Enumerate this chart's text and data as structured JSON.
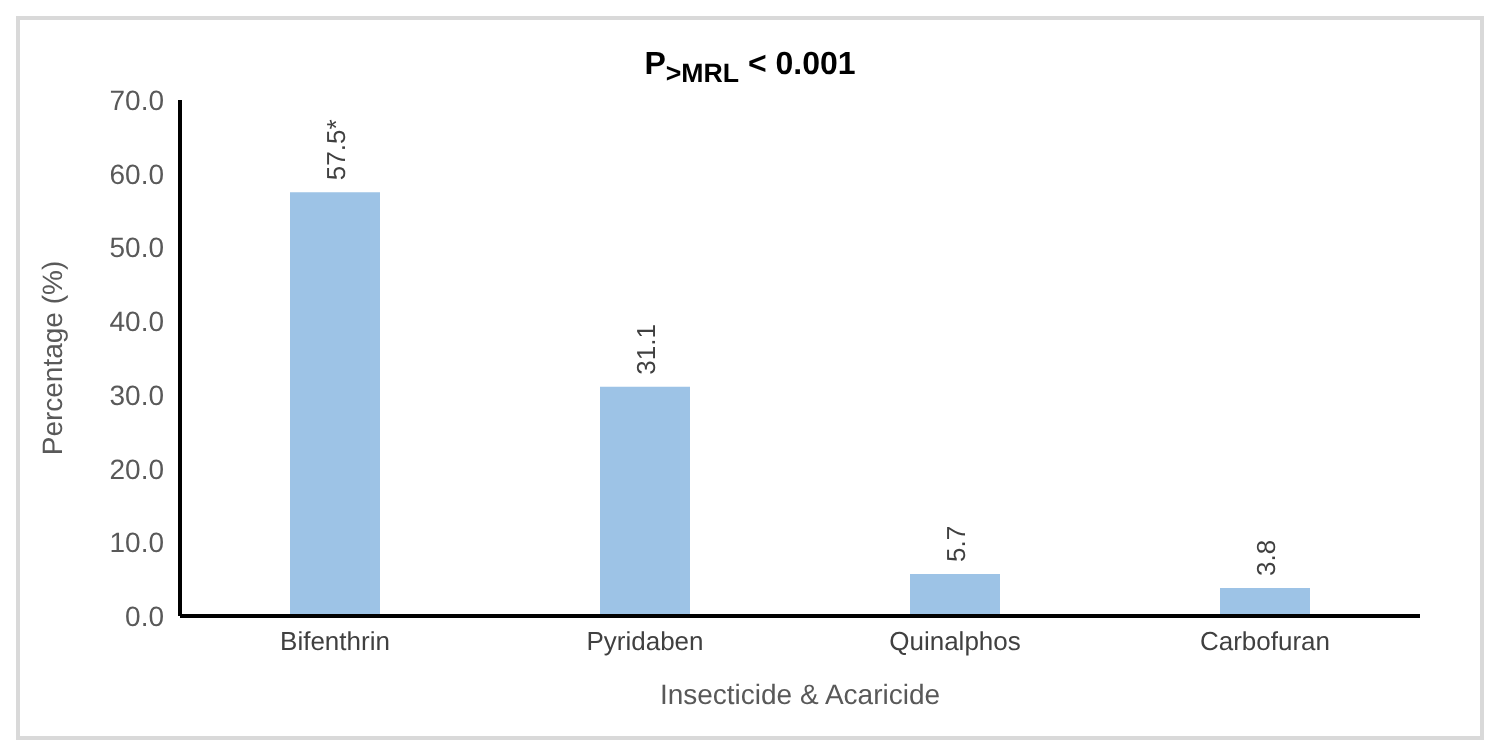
{
  "chart_data": {
    "type": "bar",
    "title": "P$_{>MRL}$ < 0.001",
    "xlabel": "Insecticide & Acaricide",
    "ylabel": "Percentage (%)",
    "categories": [
      "Bifenthrin",
      "Pyridaben",
      "Quinalphos",
      "Carbofuran"
    ],
    "values": [
      57.5,
      31.1,
      5.7,
      3.8
    ],
    "color": "#9dc3e6",
    "value_labels": [
      "57.5*",
      "31.1",
      "5.7",
      "3.8"
    ],
    "ylim": [
      0,
      70
    ],
    "yticks": [
      {
        "value": 0,
        "label": "0.0"
      },
      {
        "value": 10,
        "label": "10.0"
      },
      {
        "value": 20,
        "label": "20.0"
      },
      {
        "value": 30,
        "label": "30.0"
      },
      {
        "value": 40,
        "label": "40.0"
      },
      {
        "value": 50,
        "label": "50.0"
      },
      {
        "value": 60,
        "label": "60.0"
      },
      {
        "value": 70,
        "label": "70.0"
      }
    ],
    "grid": false
  }
}
